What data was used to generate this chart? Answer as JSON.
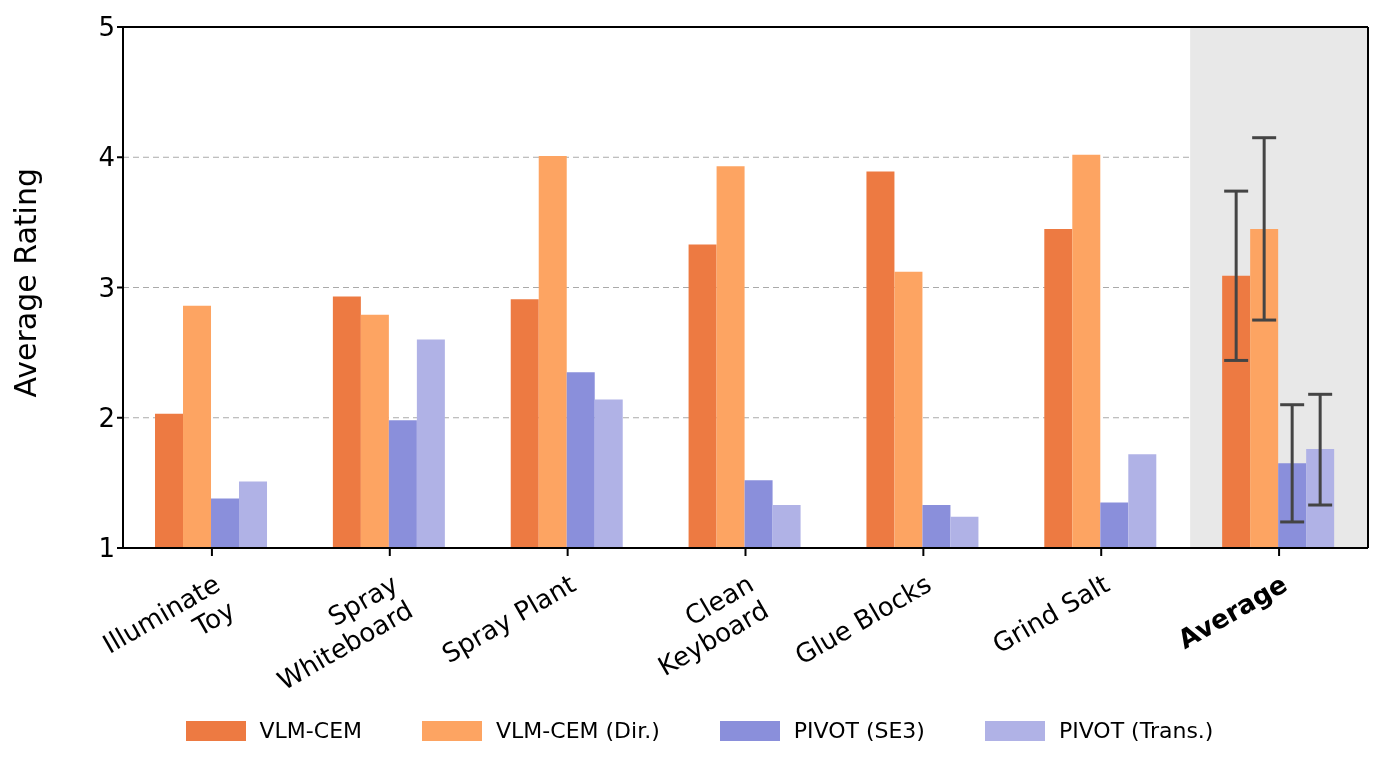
{
  "chart_data": {
    "type": "bar",
    "ylabel": "Average Rating",
    "categories": [
      "Illuminate\nToy",
      "Spray\nWhiteboard",
      "Spray Plant",
      "Clean\nKeyboard",
      "Glue Blocks",
      "Grind Salt",
      "Average"
    ],
    "series": [
      {
        "name": "VLM-CEM",
        "color": "#ed7a42",
        "values": [
          2.03,
          2.93,
          2.91,
          3.33,
          3.89,
          3.45,
          3.09
        ],
        "errors": [
          null,
          null,
          null,
          null,
          null,
          null,
          [
            2.44,
            3.74
          ]
        ]
      },
      {
        "name": "VLM-CEM (Dir.)",
        "color": "#fda462",
        "values": [
          2.86,
          2.79,
          4.01,
          3.93,
          3.12,
          4.02,
          3.45
        ],
        "errors": [
          null,
          null,
          null,
          null,
          null,
          null,
          [
            2.75,
            4.15
          ]
        ]
      },
      {
        "name": "PIVOT (SE3)",
        "color": "#8a8fdb",
        "values": [
          1.38,
          1.98,
          2.35,
          1.52,
          1.33,
          1.35,
          1.65
        ],
        "errors": [
          null,
          null,
          null,
          null,
          null,
          null,
          [
            1.2,
            2.1
          ]
        ]
      },
      {
        "name": "PIVOT (Trans.)",
        "color": "#b0b2e6",
        "values": [
          1.51,
          2.6,
          2.14,
          1.33,
          1.24,
          1.72,
          1.76
        ],
        "errors": [
          null,
          null,
          null,
          null,
          null,
          null,
          [
            1.33,
            2.18
          ]
        ]
      }
    ],
    "ylim": [
      1,
      5
    ],
    "yticks": [
      1,
      2,
      3,
      4,
      5
    ],
    "grid": "y",
    "legend": "bottom",
    "bands": [
      {
        "axis": "x",
        "from": "Average",
        "to": "Average",
        "color": "#e8e8e8"
      }
    ]
  }
}
